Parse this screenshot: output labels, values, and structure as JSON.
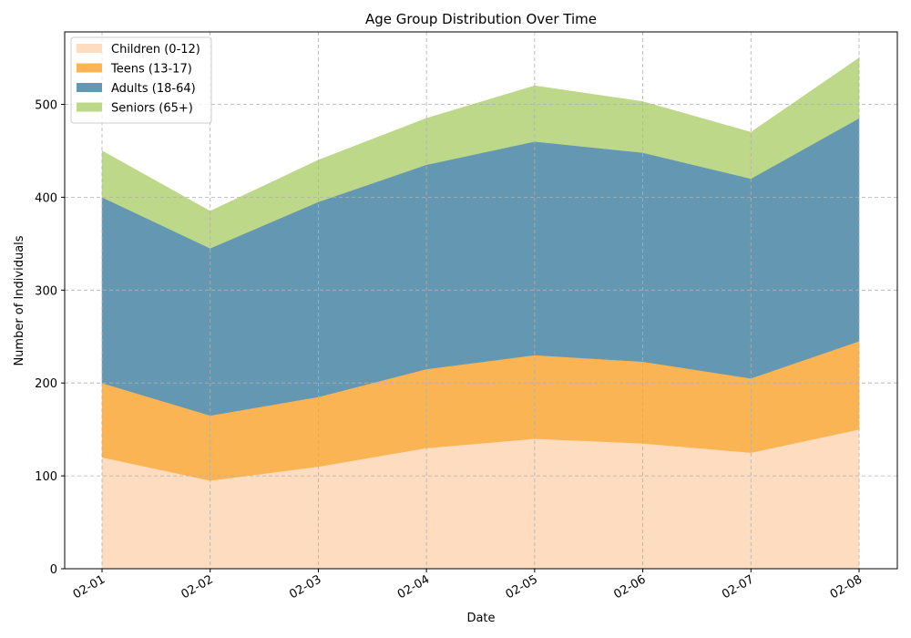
{
  "chart_data": {
    "type": "area",
    "stacked": true,
    "title": "Age Group Distribution Over Time",
    "xlabel": "Date",
    "ylabel": "Number of Individuals",
    "categories": [
      "02-01",
      "02-02",
      "02-03",
      "02-04",
      "02-05",
      "02-06",
      "02-07",
      "02-08"
    ],
    "ylim": [
      0,
      578
    ],
    "yticks": [
      0,
      100,
      200,
      300,
      400,
      500
    ],
    "grid": true,
    "legend_position": "top-left",
    "series": [
      {
        "name": "Children (0-12)",
        "color": "#fddcbf",
        "values": [
          120,
          95,
          110,
          130,
          140,
          135,
          125,
          150
        ]
      },
      {
        "name": "Teens (13-17)",
        "color": "#fbb454",
        "values": [
          80,
          70,
          75,
          85,
          90,
          88,
          80,
          95
        ]
      },
      {
        "name": "Adults (18-64)",
        "color": "#6497b1",
        "values": [
          200,
          180,
          210,
          220,
          230,
          225,
          215,
          240
        ]
      },
      {
        "name": "Seniors (65+)",
        "color": "#bcd888",
        "values": [
          50,
          40,
          45,
          50,
          60,
          55,
          50,
          65
        ]
      }
    ]
  }
}
